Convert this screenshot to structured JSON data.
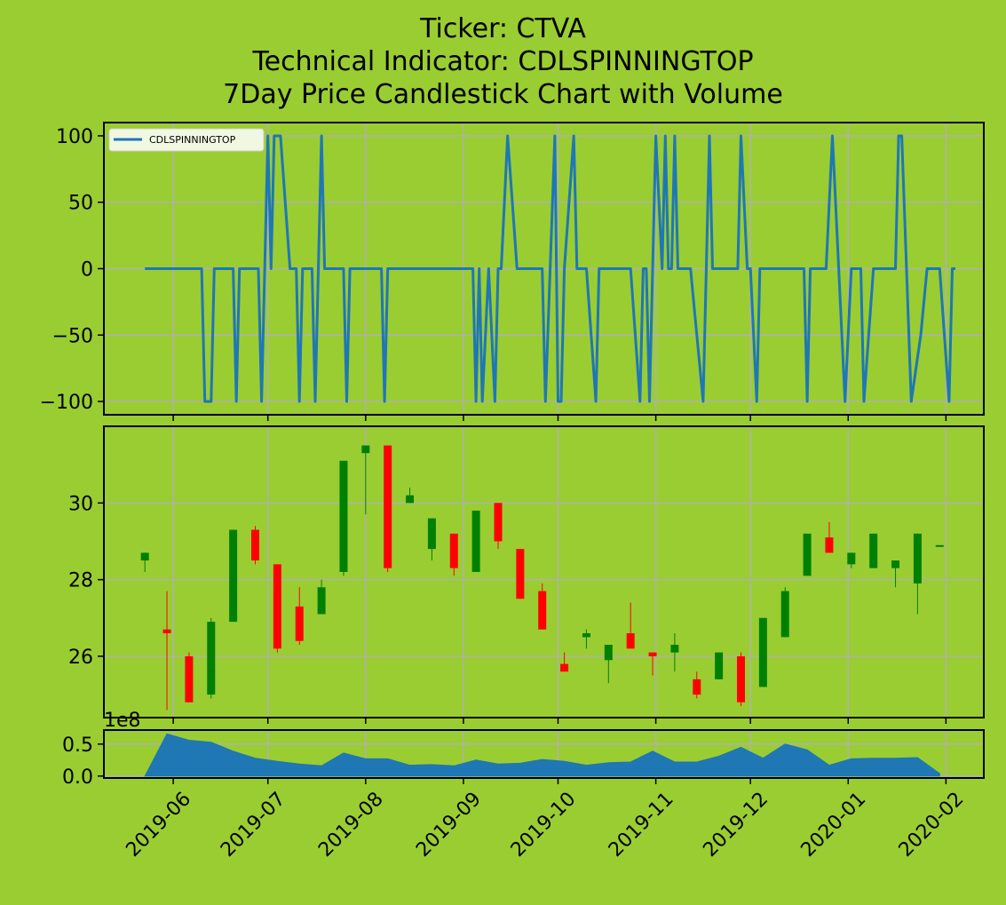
{
  "title_lines": [
    "Ticker: CTVA",
    "Technical Indicator: CDLSPINNINGTOP",
    "7Day Price Candlestick Chart with Volume"
  ],
  "colors": {
    "background": "#9acd32",
    "line": "#1f77b4",
    "up": "#008000",
    "down": "#ff0000",
    "volume": "#1f77b4",
    "grid": "#b0b0b0"
  },
  "chart_data": [
    {
      "type": "line",
      "name": "indicator",
      "legend": "CDLSPINNINGTOP",
      "legend_position": "upper-left",
      "grid": true,
      "ylim": [
        -110,
        110
      ],
      "yticks": [
        100,
        50,
        0,
        -50,
        -100
      ],
      "ytick_labels": [
        "100",
        "50",
        "0",
        "−50",
        "−100"
      ],
      "series": [
        {
          "name": "CDLSPINNINGTOP",
          "points": [
            [
              "2019-05-23",
              0
            ],
            [
              "2019-06-10",
              0
            ],
            [
              "2019-06-11",
              -100
            ],
            [
              "2019-06-13",
              -100
            ],
            [
              "2019-06-14",
              0
            ],
            [
              "2019-06-20",
              0
            ],
            [
              "2019-06-21",
              -100
            ],
            [
              "2019-06-22",
              0
            ],
            [
              "2019-06-28",
              0
            ],
            [
              "2019-06-29",
              -100
            ],
            [
              "2019-07-01",
              100
            ],
            [
              "2019-07-02",
              0
            ],
            [
              "2019-07-03",
              100
            ],
            [
              "2019-07-05",
              100
            ],
            [
              "2019-07-08",
              0
            ],
            [
              "2019-07-10",
              0
            ],
            [
              "2019-07-11",
              -100
            ],
            [
              "2019-07-12",
              0
            ],
            [
              "2019-07-15",
              0
            ],
            [
              "2019-07-16",
              -100
            ],
            [
              "2019-07-18",
              100
            ],
            [
              "2019-07-19",
              0
            ],
            [
              "2019-07-25",
              0
            ],
            [
              "2019-07-26",
              -100
            ],
            [
              "2019-07-27",
              0
            ],
            [
              "2019-08-06",
              0
            ],
            [
              "2019-08-07",
              -100
            ],
            [
              "2019-08-08",
              0
            ],
            [
              "2019-09-04",
              0
            ],
            [
              "2019-09-05",
              -100
            ],
            [
              "2019-09-06",
              0
            ],
            [
              "2019-09-07",
              -100
            ],
            [
              "2019-09-09",
              0
            ],
            [
              "2019-09-11",
              -100
            ],
            [
              "2019-09-12",
              0
            ],
            [
              "2019-09-13",
              0
            ],
            [
              "2019-09-15",
              100
            ],
            [
              "2019-09-18",
              0
            ],
            [
              "2019-09-26",
              0
            ],
            [
              "2019-09-27",
              -100
            ],
            [
              "2019-09-30",
              100
            ],
            [
              "2019-10-01",
              -100
            ],
            [
              "2019-10-02",
              -100
            ],
            [
              "2019-10-03",
              0
            ],
            [
              "2019-10-06",
              100
            ],
            [
              "2019-10-07",
              0
            ],
            [
              "2019-10-10",
              0
            ],
            [
              "2019-10-13",
              -100
            ],
            [
              "2019-10-14",
              0
            ],
            [
              "2019-10-24",
              0
            ],
            [
              "2019-10-27",
              -100
            ],
            [
              "2019-10-28",
              0
            ],
            [
              "2019-10-29",
              0
            ],
            [
              "2019-10-30",
              -100
            ],
            [
              "2019-11-01",
              100
            ],
            [
              "2019-11-03",
              0
            ],
            [
              "2019-11-04",
              100
            ],
            [
              "2019-11-05",
              0
            ],
            [
              "2019-11-06",
              0
            ],
            [
              "2019-11-07",
              100
            ],
            [
              "2019-11-08",
              0
            ],
            [
              "2019-11-12",
              0
            ],
            [
              "2019-11-16",
              -100
            ],
            [
              "2019-11-18",
              100
            ],
            [
              "2019-11-19",
              0
            ],
            [
              "2019-11-27",
              0
            ],
            [
              "2019-11-28",
              100
            ],
            [
              "2019-11-30",
              0
            ],
            [
              "2019-12-01",
              0
            ],
            [
              "2019-12-03",
              -100
            ],
            [
              "2019-12-04",
              0
            ],
            [
              "2019-12-18",
              0
            ],
            [
              "2019-12-19",
              -100
            ],
            [
              "2019-12-20",
              0
            ],
            [
              "2019-12-25",
              0
            ],
            [
              "2019-12-27",
              100
            ],
            [
              "2019-12-29",
              0
            ],
            [
              "2019-12-31",
              -100
            ],
            [
              "2020-01-02",
              0
            ],
            [
              "2020-01-05",
              0
            ],
            [
              "2020-01-06",
              -100
            ],
            [
              "2020-01-09",
              0
            ],
            [
              "2020-01-16",
              0
            ],
            [
              "2020-01-17",
              100
            ],
            [
              "2020-01-18",
              100
            ],
            [
              "2020-01-21",
              -100
            ],
            [
              "2020-01-24",
              -50
            ],
            [
              "2020-01-26",
              0
            ],
            [
              "2020-01-30",
              0
            ],
            [
              "2020-02-02",
              -100
            ],
            [
              "2020-02-03",
              0
            ],
            [
              "2020-02-04",
              0
            ]
          ]
        }
      ]
    },
    {
      "type": "candlestick",
      "name": "price",
      "grid": true,
      "ylim": [
        24.4,
        32.0
      ],
      "yticks": [
        30,
        28,
        26
      ],
      "ytick_labels": [
        "30",
        "28",
        "26"
      ],
      "candles": [
        {
          "date": "2019-05-23",
          "o": 28.5,
          "h": 28.7,
          "l": 28.2,
          "c": 28.7
        },
        {
          "date": "2019-05-30",
          "o": 26.7,
          "h": 27.7,
          "l": 24.6,
          "c": 26.6
        },
        {
          "date": "2019-06-06",
          "o": 26.0,
          "h": 26.1,
          "l": 24.8,
          "c": 24.8
        },
        {
          "date": "2019-06-13",
          "o": 25.0,
          "h": 27.0,
          "l": 24.9,
          "c": 26.9
        },
        {
          "date": "2019-06-20",
          "o": 26.9,
          "h": 29.3,
          "l": 26.9,
          "c": 29.3
        },
        {
          "date": "2019-06-27",
          "o": 29.3,
          "h": 29.4,
          "l": 28.4,
          "c": 28.5
        },
        {
          "date": "2019-07-04",
          "o": 28.4,
          "h": 28.4,
          "l": 26.1,
          "c": 26.2
        },
        {
          "date": "2019-07-11",
          "o": 27.3,
          "h": 27.8,
          "l": 26.3,
          "c": 26.4
        },
        {
          "date": "2019-07-18",
          "o": 27.1,
          "h": 28.0,
          "l": 27.1,
          "c": 27.8
        },
        {
          "date": "2019-07-25",
          "o": 28.2,
          "h": 31.1,
          "l": 28.1,
          "c": 31.1
        },
        {
          "date": "2019-08-01",
          "o": 31.3,
          "h": 31.5,
          "l": 29.7,
          "c": 31.5
        },
        {
          "date": "2019-08-08",
          "o": 31.5,
          "h": 31.5,
          "l": 28.2,
          "c": 28.3
        },
        {
          "date": "2019-08-15",
          "o": 30.0,
          "h": 30.4,
          "l": 30.0,
          "c": 30.2
        },
        {
          "date": "2019-08-22",
          "o": 28.8,
          "h": 29.6,
          "l": 28.5,
          "c": 29.6
        },
        {
          "date": "2019-08-29",
          "o": 29.2,
          "h": 29.2,
          "l": 28.1,
          "c": 28.3
        },
        {
          "date": "2019-09-05",
          "o": 28.2,
          "h": 29.8,
          "l": 28.2,
          "c": 29.8
        },
        {
          "date": "2019-09-12",
          "o": 30.0,
          "h": 30.0,
          "l": 28.8,
          "c": 29.0
        },
        {
          "date": "2019-09-19",
          "o": 28.8,
          "h": 28.8,
          "l": 27.5,
          "c": 27.5
        },
        {
          "date": "2019-09-26",
          "o": 27.7,
          "h": 27.9,
          "l": 26.7,
          "c": 26.7
        },
        {
          "date": "2019-10-03",
          "o": 25.8,
          "h": 26.1,
          "l": 25.6,
          "c": 25.6
        },
        {
          "date": "2019-10-10",
          "o": 26.5,
          "h": 26.7,
          "l": 26.2,
          "c": 26.6
        },
        {
          "date": "2019-10-17",
          "o": 25.9,
          "h": 26.3,
          "l": 25.3,
          "c": 26.3
        },
        {
          "date": "2019-10-24",
          "o": 26.6,
          "h": 27.4,
          "l": 26.2,
          "c": 26.2
        },
        {
          "date": "2019-10-31",
          "o": 26.1,
          "h": 26.1,
          "l": 25.5,
          "c": 26.0
        },
        {
          "date": "2019-11-07",
          "o": 26.1,
          "h": 26.6,
          "l": 25.6,
          "c": 26.3
        },
        {
          "date": "2019-11-14",
          "o": 25.4,
          "h": 25.6,
          "l": 24.9,
          "c": 25.0
        },
        {
          "date": "2019-11-21",
          "o": 25.4,
          "h": 26.1,
          "l": 25.4,
          "c": 26.1
        },
        {
          "date": "2019-11-28",
          "o": 26.0,
          "h": 26.1,
          "l": 24.7,
          "c": 24.8
        },
        {
          "date": "2019-12-05",
          "o": 25.2,
          "h": 27.0,
          "l": 25.2,
          "c": 27.0
        },
        {
          "date": "2019-12-12",
          "o": 26.5,
          "h": 27.8,
          "l": 26.5,
          "c": 27.7
        },
        {
          "date": "2019-12-19",
          "o": 28.1,
          "h": 29.2,
          "l": 28.1,
          "c": 29.2
        },
        {
          "date": "2019-12-26",
          "o": 29.1,
          "h": 29.5,
          "l": 28.7,
          "c": 28.7
        },
        {
          "date": "2020-01-02",
          "o": 28.4,
          "h": 28.7,
          "l": 28.3,
          "c": 28.7
        },
        {
          "date": "2020-01-09",
          "o": 28.3,
          "h": 29.2,
          "l": 28.3,
          "c": 29.2
        },
        {
          "date": "2020-01-16",
          "o": 28.3,
          "h": 28.5,
          "l": 27.8,
          "c": 28.5
        },
        {
          "date": "2020-01-23",
          "o": 27.9,
          "h": 29.2,
          "l": 27.1,
          "c": 29.2
        },
        {
          "date": "2020-01-30",
          "o": 28.9,
          "h": 28.9,
          "l": 28.9,
          "c": 28.9
        }
      ]
    },
    {
      "type": "area",
      "name": "volume",
      "grid": true,
      "offset_label": "1e8",
      "ylim": [
        -0.03,
        0.72
      ],
      "yticks": [
        0.5,
        0.0
      ],
      "ytick_labels": [
        "0.5",
        "0.0"
      ],
      "series": [
        {
          "points": [
            [
              "2019-05-23",
              0.0
            ],
            [
              "2019-05-30",
              0.66
            ],
            [
              "2019-06-06",
              0.56
            ],
            [
              "2019-06-13",
              0.53
            ],
            [
              "2019-06-20",
              0.39
            ],
            [
              "2019-06-27",
              0.28
            ],
            [
              "2019-07-04",
              0.23
            ],
            [
              "2019-07-11",
              0.19
            ],
            [
              "2019-07-18",
              0.16
            ],
            [
              "2019-07-25",
              0.36
            ],
            [
              "2019-08-01",
              0.27
            ],
            [
              "2019-08-08",
              0.27
            ],
            [
              "2019-08-15",
              0.17
            ],
            [
              "2019-08-22",
              0.18
            ],
            [
              "2019-08-29",
              0.16
            ],
            [
              "2019-09-05",
              0.25
            ],
            [
              "2019-09-12",
              0.19
            ],
            [
              "2019-09-19",
              0.2
            ],
            [
              "2019-09-26",
              0.26
            ],
            [
              "2019-10-03",
              0.23
            ],
            [
              "2019-10-10",
              0.17
            ],
            [
              "2019-10-17",
              0.21
            ],
            [
              "2019-10-24",
              0.22
            ],
            [
              "2019-10-31",
              0.39
            ],
            [
              "2019-11-07",
              0.22
            ],
            [
              "2019-11-14",
              0.22
            ],
            [
              "2019-11-21",
              0.31
            ],
            [
              "2019-11-28",
              0.45
            ],
            [
              "2019-12-05",
              0.28
            ],
            [
              "2019-12-12",
              0.5
            ],
            [
              "2019-12-19",
              0.41
            ],
            [
              "2019-12-26",
              0.17
            ],
            [
              "2020-01-02",
              0.27
            ],
            [
              "2020-01-09",
              0.28
            ],
            [
              "2020-01-16",
              0.28
            ],
            [
              "2020-01-23",
              0.29
            ],
            [
              "2020-01-30",
              0.04
            ]
          ]
        }
      ]
    }
  ],
  "x_axis": {
    "ticks": [
      "2019-06-01",
      "2019-07-01",
      "2019-08-01",
      "2019-09-01",
      "2019-10-01",
      "2019-11-01",
      "2019-12-01",
      "2020-01-01",
      "2020-02-01"
    ],
    "tick_labels": [
      "2019-06",
      "2019-07",
      "2019-08",
      "2019-09",
      "2019-10",
      "2019-11",
      "2019-12",
      "2020-01",
      "2020-02"
    ],
    "range": [
      "2019-05-10",
      "2020-02-13"
    ]
  }
}
